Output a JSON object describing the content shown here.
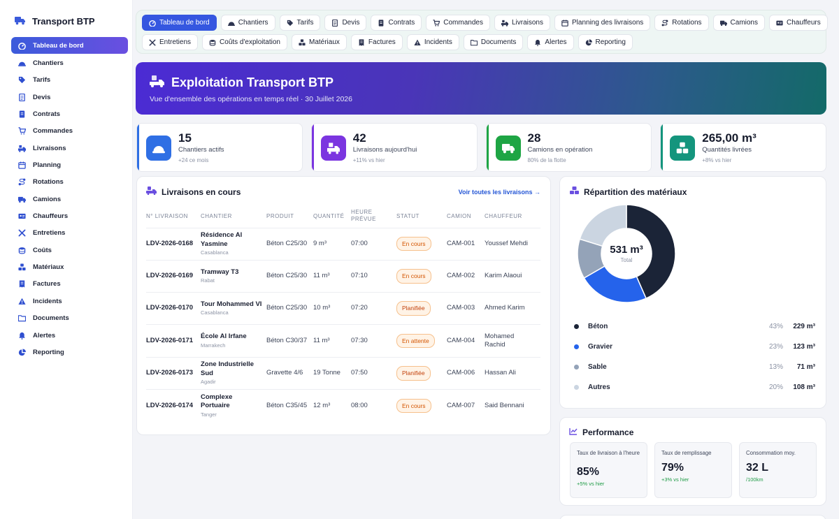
{
  "app": {
    "title": "Transport BTP"
  },
  "sidebar": {
    "items": [
      {
        "label": "Tableau de bord",
        "icon": "dashboard-icon",
        "active": true
      },
      {
        "label": "Chantiers",
        "icon": "helmet-icon"
      },
      {
        "label": "Tarifs",
        "icon": "tag-icon"
      },
      {
        "label": "Devis",
        "icon": "document-icon"
      },
      {
        "label": "Contrats",
        "icon": "contract-icon"
      },
      {
        "label": "Commandes",
        "icon": "cart-icon"
      },
      {
        "label": "Livraisons",
        "icon": "truck-loading-icon"
      },
      {
        "label": "Planning",
        "icon": "calendar-icon"
      },
      {
        "label": "Rotations",
        "icon": "route-icon"
      },
      {
        "label": "Camions",
        "icon": "truck-icon"
      },
      {
        "label": "Chauffeurs",
        "icon": "id-card-icon"
      },
      {
        "label": "Entretiens",
        "icon": "tools-icon"
      },
      {
        "label": "Coûts",
        "icon": "coins-icon"
      },
      {
        "label": "Matériaux",
        "icon": "cubes-icon"
      },
      {
        "label": "Factures",
        "icon": "invoice-icon"
      },
      {
        "label": "Incidents",
        "icon": "warning-icon"
      },
      {
        "label": "Documents",
        "icon": "folder-icon"
      },
      {
        "label": "Alertes",
        "icon": "bell-icon"
      },
      {
        "label": "Reporting",
        "icon": "pie-chart-icon"
      }
    ]
  },
  "tabs": {
    "row1": [
      {
        "label": "Tableau de bord",
        "icon": "dashboard-icon",
        "active": true
      },
      {
        "label": "Chantiers",
        "icon": "helmet-icon"
      },
      {
        "label": "Tarifs",
        "icon": "tag-icon"
      },
      {
        "label": "Devis",
        "icon": "document-icon"
      },
      {
        "label": "Contrats",
        "icon": "contract-icon"
      },
      {
        "label": "Commandes",
        "icon": "cart-icon"
      },
      {
        "label": "Livraisons",
        "icon": "truck-loading-icon"
      },
      {
        "label": "Planning des livraisons",
        "icon": "calendar-icon"
      },
      {
        "label": "Rotations",
        "icon": "route-icon"
      },
      {
        "label": "Camions",
        "icon": "truck-icon"
      },
      {
        "label": "Chauffeurs",
        "icon": "id-card-icon"
      }
    ],
    "row2": [
      {
        "label": "Entretiens",
        "icon": "tools-icon"
      },
      {
        "label": "Coûts d'exploitation",
        "icon": "coins-icon"
      },
      {
        "label": "Matériaux",
        "icon": "cubes-icon"
      },
      {
        "label": "Factures",
        "icon": "invoice-icon"
      },
      {
        "label": "Incidents",
        "icon": "warning-icon"
      },
      {
        "label": "Documents",
        "icon": "folder-icon"
      },
      {
        "label": "Alertes",
        "icon": "bell-icon"
      },
      {
        "label": "Reporting",
        "icon": "pie-chart-icon"
      }
    ]
  },
  "hero": {
    "title": "Exploitation Transport BTP",
    "subtitle": "Vue d'ensemble des opérations en temps réel · 30 Juillet 2026"
  },
  "stats": [
    {
      "value": "15",
      "label": "Chantiers actifs",
      "sub": "+24 ce mois",
      "icon": "helmet-icon",
      "color": "#2f6fe4"
    },
    {
      "value": "42",
      "label": "Livraisons aujourd'hui",
      "sub": "+11% vs hier",
      "icon": "truck-loading-icon",
      "color": "#7b35e0"
    },
    {
      "value": "28",
      "label": "Camions en opération",
      "sub": "80% de la flotte",
      "icon": "truck-icon",
      "color": "#1ea544"
    },
    {
      "value": "265,00 m³",
      "label": "Quantités livrées",
      "sub": "+8% vs hier",
      "icon": "cubes-icon",
      "color": "#14957d"
    }
  ],
  "deliveries": {
    "title": "Livraisons en cours",
    "link": "Voir toutes les livraisons →",
    "columns": [
      "N° LIVRAISON",
      "CHANTIER",
      "PRODUIT",
      "QUANTITÉ",
      "HEURE PRÉVUE",
      "STATUT",
      "CAMION",
      "CHAUFFEUR"
    ],
    "rows": [
      {
        "num": "LDV-2026-0168",
        "site": "Résidence Al Yasmine",
        "city": "Casablanca",
        "product": "Béton C25/30",
        "qty": "9 m³",
        "time": "07:00",
        "status": "En cours",
        "status_kind": "cours",
        "truck": "CAM-001",
        "driver": "Youssef Mehdi"
      },
      {
        "num": "LDV-2026-0169",
        "site": "Tramway T3",
        "city": "Rabat",
        "product": "Béton C25/30",
        "qty": "11 m³",
        "time": "07:10",
        "status": "En cours",
        "status_kind": "cours",
        "truck": "CAM-002",
        "driver": "Karim Alaoui"
      },
      {
        "num": "LDV-2026-0170",
        "site": "Tour Mohammed VI",
        "city": "Casablanca",
        "product": "Béton C25/30",
        "qty": "10 m³",
        "time": "07:20",
        "status": "Planifiée",
        "status_kind": "planif",
        "truck": "CAM-003",
        "driver": "Ahmed Karim"
      },
      {
        "num": "LDV-2026-0171",
        "site": "École Al Irfane",
        "city": "Marrakech",
        "product": "Béton C30/37",
        "qty": "11 m³",
        "time": "07:30",
        "status": "En attente",
        "status_kind": "attente",
        "truck": "CAM-004",
        "driver": "Mohamed Rachid"
      },
      {
        "num": "LDV-2026-0173",
        "site": "Zone Industrielle Sud",
        "city": "Agadir",
        "product": "Gravette 4/6",
        "qty": "19 Tonne",
        "time": "07:50",
        "status": "Planifiée",
        "status_kind": "planif",
        "truck": "CAM-006",
        "driver": "Hassan Ali"
      },
      {
        "num": "LDV-2026-0174",
        "site": "Complexe Portuaire",
        "city": "Tanger",
        "product": "Béton C35/45",
        "qty": "12 m³",
        "time": "08:00",
        "status": "En cours",
        "status_kind": "cours",
        "truck": "CAM-007",
        "driver": "Said Bennani"
      }
    ]
  },
  "materials": {
    "title": "Répartition des matériaux",
    "total_value": "531 m³",
    "total_label": "Total",
    "items": [
      {
        "name": "Béton",
        "pct": "43%",
        "value": "229 m³",
        "share": 43,
        "color": "#1b2437"
      },
      {
        "name": "Gravier",
        "pct": "23%",
        "value": "123 m³",
        "share": 23,
        "color": "#2563eb"
      },
      {
        "name": "Sable",
        "pct": "13%",
        "value": "71 m³",
        "share": 13,
        "color": "#94a3b8"
      },
      {
        "name": "Autres",
        "pct": "20%",
        "value": "108 m³",
        "share": 20,
        "color": "#cbd5e1"
      }
    ]
  },
  "performance": {
    "title": "Performance",
    "kpis": [
      {
        "label": "Taux de livraison à l'heure",
        "value": "85%",
        "delta": "+5% vs hier"
      },
      {
        "label": "Taux de remplissage",
        "value": "79%",
        "delta": "+3% vs hier"
      },
      {
        "label": "Consommation moy.",
        "value": "32 L",
        "delta": "/100km"
      }
    ]
  }
}
